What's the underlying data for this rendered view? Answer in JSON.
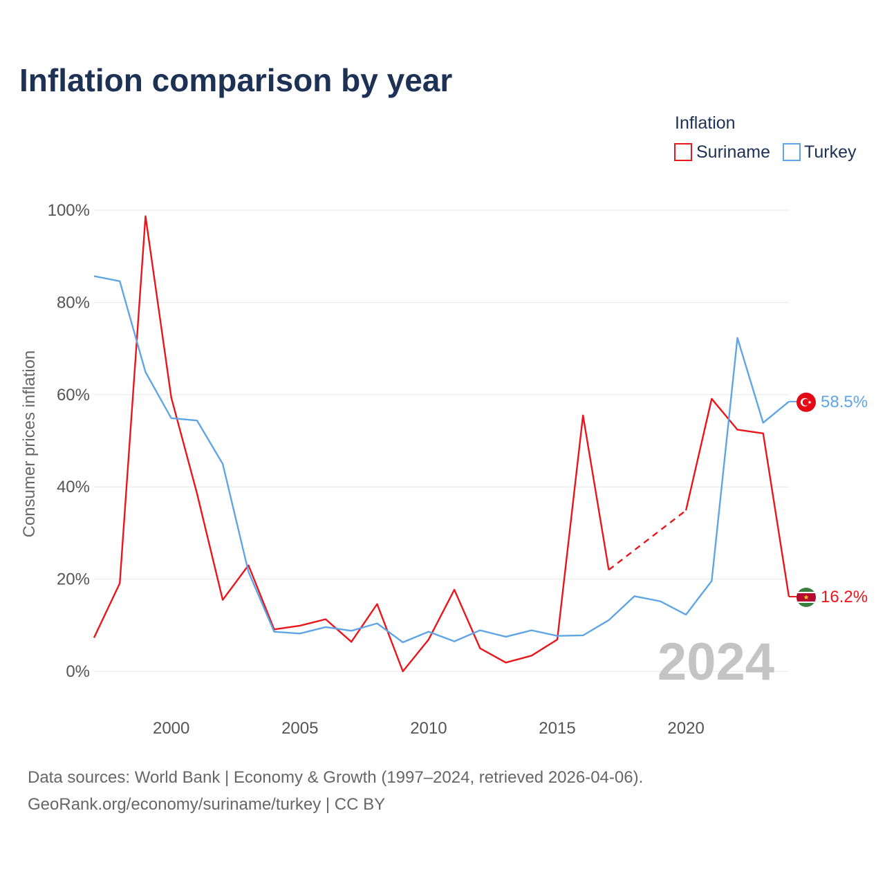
{
  "chart_data": {
    "type": "line",
    "title": "Inflation comparison by year",
    "legend_title": "Inflation",
    "ylabel": "Consumer prices inflation",
    "xlabel": "",
    "xlim": [
      1997,
      2024
    ],
    "ylim": [
      0,
      100
    ],
    "y_ticks": [
      0,
      20,
      40,
      60,
      80,
      100
    ],
    "y_tick_labels": [
      "0%",
      "20%",
      "40%",
      "60%",
      "80%",
      "100%"
    ],
    "x_ticks": [
      2000,
      2005,
      2010,
      2015,
      2020
    ],
    "x_tick_labels": [
      "2000",
      "2005",
      "2010",
      "2015",
      "2020"
    ],
    "watermark_year": "2024",
    "x": [
      1997,
      1998,
      1999,
      2000,
      2001,
      2002,
      2003,
      2004,
      2005,
      2006,
      2007,
      2008,
      2009,
      2010,
      2011,
      2012,
      2013,
      2014,
      2015,
      2016,
      2017,
      2018,
      2019,
      2020,
      2021,
      2022,
      2023,
      2024
    ],
    "series": [
      {
        "name": "Suriname",
        "color": "#e8151b",
        "values": [
          7.3,
          19.1,
          98.7,
          59.4,
          38.6,
          15.5,
          23.0,
          9.1,
          9.9,
          11.3,
          6.4,
          14.6,
          0.0,
          6.9,
          17.7,
          5.0,
          1.9,
          3.4,
          6.9,
          55.5,
          22.0,
          null,
          null,
          34.9,
          59.1,
          52.4,
          51.6,
          16.2
        ],
        "dashed_gap": {
          "from_year": 2017,
          "to_year": 2020
        },
        "end_label": "16.2%",
        "flag": "suriname-flag"
      },
      {
        "name": "Turkey",
        "color": "#5fa5e5",
        "values": [
          85.7,
          84.6,
          64.9,
          54.9,
          54.4,
          45.0,
          21.6,
          8.6,
          8.2,
          9.6,
          8.8,
          10.4,
          6.3,
          8.6,
          6.5,
          8.9,
          7.5,
          8.9,
          7.7,
          7.8,
          11.1,
          16.3,
          15.2,
          12.3,
          19.6,
          72.3,
          53.9,
          58.5
        ],
        "end_label": "58.5%",
        "flag": "turkey-flag"
      }
    ]
  },
  "footer": {
    "source_line": "Data sources: World Bank | Economy & Growth (1997–2024, retrieved 2026-04-06).",
    "credit_line": "GeoRank.org/economy/suriname/turkey | CC BY"
  }
}
